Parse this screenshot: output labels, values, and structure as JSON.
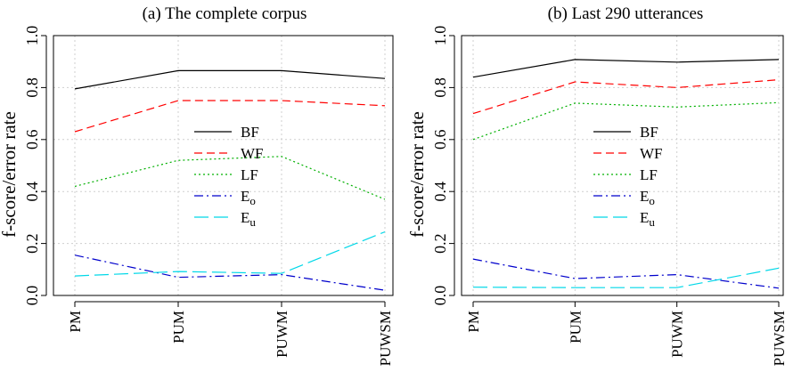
{
  "chart_data": [
    {
      "type": "line",
      "title": "(a) The complete corpus",
      "ylabel": "f-score/error rate",
      "xlabel": "",
      "categories": [
        "PM",
        "PUM",
        "PUWM",
        "PUWSM"
      ],
      "yticks": [
        "0.0",
        "0.2",
        "0.4",
        "0.6",
        "0.8",
        "1.0"
      ],
      "ylim": [
        0,
        1
      ],
      "grid": true,
      "legend_position": "center",
      "series": [
        {
          "name": "BF",
          "values": [
            0.795,
            0.865,
            0.865,
            0.835
          ],
          "color": "#000000",
          "dash": "solid"
        },
        {
          "name": "WF",
          "values": [
            0.63,
            0.75,
            0.75,
            0.73
          ],
          "color": "#ff0000",
          "dash": "dashed"
        },
        {
          "name": "LF",
          "values": [
            0.42,
            0.52,
            0.535,
            0.37
          ],
          "color": "#00b000",
          "dash": "dotted"
        },
        {
          "name": "E",
          "sub": "o",
          "values": [
            0.155,
            0.07,
            0.08,
            0.02
          ],
          "color": "#0000cc",
          "dash": "dotdash"
        },
        {
          "name": "E",
          "sub": "u",
          "values": [
            0.075,
            0.092,
            0.085,
            0.245
          ],
          "color": "#00d8e8",
          "dash": "longdash"
        }
      ]
    },
    {
      "type": "line",
      "title": "(b) Last 290 utterances",
      "ylabel": "f-score/error rate",
      "xlabel": "",
      "categories": [
        "PM",
        "PUM",
        "PUWM",
        "PUWSM"
      ],
      "yticks": [
        "0.0",
        "0.2",
        "0.4",
        "0.6",
        "0.8",
        "1.0"
      ],
      "ylim": [
        0,
        1
      ],
      "grid": true,
      "legend_position": "center",
      "series": [
        {
          "name": "BF",
          "values": [
            0.84,
            0.908,
            0.898,
            0.908
          ],
          "color": "#000000",
          "dash": "solid"
        },
        {
          "name": "WF",
          "values": [
            0.7,
            0.822,
            0.8,
            0.83
          ],
          "color": "#ff0000",
          "dash": "dashed"
        },
        {
          "name": "LF",
          "values": [
            0.6,
            0.74,
            0.725,
            0.742
          ],
          "color": "#00b000",
          "dash": "dotted"
        },
        {
          "name": "E",
          "sub": "o",
          "values": [
            0.14,
            0.065,
            0.08,
            0.028
          ],
          "color": "#0000cc",
          "dash": "dotdash"
        },
        {
          "name": "E",
          "sub": "u",
          "values": [
            0.032,
            0.03,
            0.03,
            0.105
          ],
          "color": "#00d8e8",
          "dash": "longdash"
        }
      ]
    }
  ]
}
